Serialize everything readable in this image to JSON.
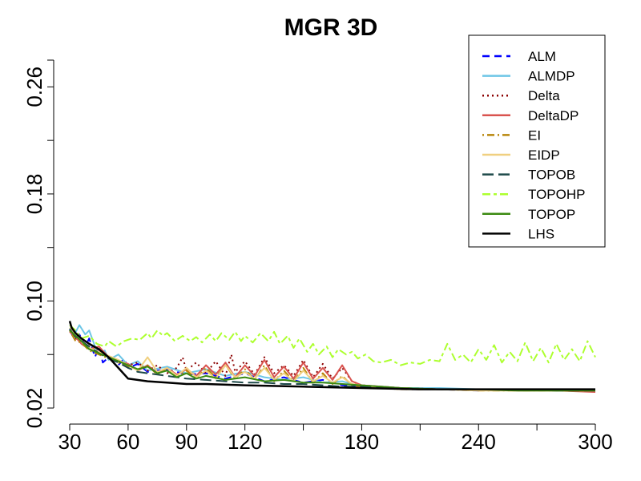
{
  "chart_data": {
    "type": "line",
    "title": "MGR 3D",
    "xlabel": "",
    "ylabel": "",
    "xlim": [
      30,
      300
    ],
    "ylim": [
      0.02,
      0.28
    ],
    "x_ticks": [
      30,
      60,
      90,
      120,
      150,
      180,
      210,
      240,
      270,
      300
    ],
    "x_tick_labels": [
      "30",
      "60",
      "90",
      "120",
      "",
      "180",
      "",
      "240",
      "",
      "300"
    ],
    "y_ticks": [
      0.02,
      0.06,
      0.1,
      0.14,
      0.18,
      0.22,
      0.26
    ],
    "y_tick_labels": [
      "0.02",
      "",
      "0.10",
      "",
      "0.18",
      "",
      "0.26"
    ],
    "grid": false,
    "legend_position": "top-right",
    "series": [
      {
        "name": "ALM",
        "color": "#0000ff",
        "dash": "dashed",
        "x": [
          30,
          32,
          35,
          38,
          40,
          43,
          45,
          47,
          50,
          53,
          55,
          58,
          60,
          65,
          70,
          80,
          90,
          100,
          110,
          120,
          130,
          140,
          150,
          160,
          170,
          180,
          190,
          200,
          220,
          240,
          260,
          280,
          300
        ],
        "y": [
          0.079,
          0.072,
          0.075,
          0.066,
          0.072,
          0.058,
          0.066,
          0.054,
          0.058,
          0.056,
          0.052,
          0.057,
          0.05,
          0.053,
          0.047,
          0.049,
          0.045,
          0.046,
          0.042,
          0.046,
          0.04,
          0.043,
          0.039,
          0.041,
          0.037,
          0.036,
          0.035,
          0.034,
          0.034,
          0.033,
          0.034,
          0.033,
          0.034
        ]
      },
      {
        "name": "ALMDP",
        "color": "#6ec6e6",
        "dash": "solid",
        "x": [
          30,
          32,
          35,
          38,
          40,
          43,
          45,
          48,
          50,
          55,
          60,
          65,
          70,
          80,
          90,
          100,
          110,
          120,
          130,
          140,
          150,
          160,
          170,
          180,
          190,
          200,
          220,
          240,
          260,
          280,
          300
        ],
        "y": [
          0.08,
          0.074,
          0.082,
          0.075,
          0.078,
          0.066,
          0.06,
          0.063,
          0.056,
          0.06,
          0.052,
          0.055,
          0.048,
          0.051,
          0.046,
          0.049,
          0.044,
          0.047,
          0.043,
          0.041,
          0.043,
          0.039,
          0.04,
          0.036,
          0.036,
          0.035,
          0.035,
          0.034,
          0.034,
          0.034,
          0.034
        ]
      },
      {
        "name": "Delta",
        "color": "#8b0000",
        "dash": "dotted",
        "x": [
          30,
          33,
          36,
          40,
          45,
          50,
          55,
          60,
          65,
          70,
          75,
          80,
          85,
          88,
          90,
          95,
          100,
          105,
          110,
          113,
          115,
          120,
          125,
          130,
          135,
          140,
          145,
          150,
          155,
          160,
          165,
          170,
          175,
          180,
          190,
          200,
          220,
          240,
          260,
          280,
          300
        ],
        "y": [
          0.078,
          0.072,
          0.07,
          0.066,
          0.062,
          0.058,
          0.055,
          0.052,
          0.054,
          0.048,
          0.052,
          0.046,
          0.05,
          0.058,
          0.048,
          0.054,
          0.046,
          0.055,
          0.044,
          0.06,
          0.047,
          0.055,
          0.045,
          0.058,
          0.046,
          0.052,
          0.044,
          0.056,
          0.043,
          0.053,
          0.042,
          0.05,
          0.04,
          0.037,
          0.036,
          0.035,
          0.034,
          0.034,
          0.034,
          0.033,
          0.033
        ]
      },
      {
        "name": "DeltaDP",
        "color": "#d9534f",
        "dash": "solid",
        "x": [
          30,
          33,
          36,
          40,
          45,
          50,
          55,
          60,
          65,
          70,
          75,
          80,
          85,
          90,
          95,
          100,
          105,
          110,
          115,
          120,
          125,
          130,
          135,
          140,
          145,
          150,
          155,
          160,
          165,
          170,
          175,
          180,
          190,
          200,
          220,
          240,
          260,
          280,
          300
        ],
        "y": [
          0.077,
          0.073,
          0.068,
          0.064,
          0.066,
          0.058,
          0.055,
          0.053,
          0.048,
          0.052,
          0.046,
          0.05,
          0.045,
          0.049,
          0.044,
          0.052,
          0.045,
          0.054,
          0.043,
          0.052,
          0.044,
          0.056,
          0.043,
          0.051,
          0.042,
          0.054,
          0.042,
          0.05,
          0.041,
          0.052,
          0.04,
          0.037,
          0.036,
          0.035,
          0.034,
          0.034,
          0.033,
          0.033,
          0.032
        ]
      },
      {
        "name": "EI",
        "color": "#b8860b",
        "dash": "dotdash",
        "x": [
          30,
          33,
          36,
          40,
          45,
          50,
          55,
          60,
          65,
          70,
          75,
          80,
          85,
          90,
          95,
          100,
          105,
          110,
          115,
          120,
          125,
          130,
          135,
          140,
          145,
          150,
          155,
          160,
          165,
          170,
          175,
          180,
          190,
          200,
          220,
          240,
          260,
          280,
          300
        ],
        "y": [
          0.078,
          0.07,
          0.069,
          0.063,
          0.06,
          0.057,
          0.054,
          0.051,
          0.049,
          0.052,
          0.045,
          0.05,
          0.043,
          0.048,
          0.042,
          0.05,
          0.043,
          0.052,
          0.042,
          0.049,
          0.041,
          0.052,
          0.04,
          0.048,
          0.04,
          0.05,
          0.039,
          0.046,
          0.038,
          0.044,
          0.037,
          0.036,
          0.035,
          0.034,
          0.034,
          0.033,
          0.033,
          0.033,
          0.033
        ]
      },
      {
        "name": "EIDP",
        "color": "#f0d080",
        "dash": "solid",
        "x": [
          30,
          33,
          36,
          40,
          45,
          50,
          55,
          60,
          65,
          70,
          75,
          80,
          85,
          90,
          95,
          100,
          105,
          110,
          115,
          120,
          125,
          130,
          135,
          140,
          145,
          150,
          155,
          160,
          165,
          170,
          175,
          180,
          190,
          200,
          220,
          240,
          260,
          280,
          300
        ],
        "y": [
          0.08,
          0.074,
          0.07,
          0.065,
          0.062,
          0.059,
          0.056,
          0.052,
          0.048,
          0.058,
          0.047,
          0.05,
          0.044,
          0.05,
          0.043,
          0.048,
          0.042,
          0.052,
          0.043,
          0.047,
          0.042,
          0.05,
          0.041,
          0.046,
          0.04,
          0.048,
          0.04,
          0.044,
          0.039,
          0.043,
          0.038,
          0.037,
          0.035,
          0.034,
          0.034,
          0.033,
          0.033,
          0.033,
          0.033
        ]
      },
      {
        "name": "TOPOB",
        "color": "#1e4a4a",
        "dash": "longdash",
        "x": [
          30,
          33,
          36,
          40,
          45,
          50,
          55,
          60,
          65,
          70,
          80,
          90,
          100,
          110,
          120,
          130,
          140,
          150,
          160,
          170,
          180,
          190,
          200,
          220,
          240,
          260,
          280,
          300
        ],
        "y": [
          0.079,
          0.073,
          0.07,
          0.066,
          0.061,
          0.057,
          0.054,
          0.05,
          0.047,
          0.046,
          0.044,
          0.042,
          0.041,
          0.04,
          0.039,
          0.039,
          0.038,
          0.038,
          0.037,
          0.036,
          0.036,
          0.035,
          0.035,
          0.034,
          0.034,
          0.034,
          0.033,
          0.033
        ]
      },
      {
        "name": "TOPOHP",
        "color": "#adff2f",
        "dash": "twodash",
        "x": [
          30,
          33,
          36,
          40,
          44,
          48,
          50,
          54,
          58,
          62,
          66,
          70,
          72,
          75,
          78,
          80,
          84,
          88,
          92,
          95,
          98,
          102,
          105,
          108,
          112,
          115,
          118,
          120,
          124,
          128,
          132,
          135,
          138,
          142,
          145,
          148,
          152,
          155,
          158,
          162,
          165,
          168,
          172,
          175,
          178,
          182,
          186,
          190,
          195,
          200,
          205,
          210,
          215,
          220,
          224,
          228,
          232,
          236,
          240,
          244,
          248,
          252,
          256,
          260,
          264,
          268,
          272,
          276,
          280,
          284,
          288,
          292,
          296,
          300
        ],
        "y": [
          0.082,
          0.078,
          0.072,
          0.074,
          0.068,
          0.066,
          0.07,
          0.066,
          0.07,
          0.072,
          0.071,
          0.076,
          0.072,
          0.078,
          0.074,
          0.076,
          0.07,
          0.074,
          0.07,
          0.073,
          0.069,
          0.075,
          0.07,
          0.076,
          0.071,
          0.077,
          0.07,
          0.074,
          0.069,
          0.076,
          0.07,
          0.077,
          0.068,
          0.074,
          0.065,
          0.072,
          0.062,
          0.068,
          0.06,
          0.066,
          0.058,
          0.064,
          0.06,
          0.062,
          0.057,
          0.06,
          0.055,
          0.054,
          0.056,
          0.052,
          0.054,
          0.053,
          0.056,
          0.055,
          0.068,
          0.056,
          0.06,
          0.054,
          0.064,
          0.056,
          0.067,
          0.054,
          0.062,
          0.055,
          0.069,
          0.055,
          0.065,
          0.054,
          0.068,
          0.056,
          0.064,
          0.055,
          0.07,
          0.058
        ]
      },
      {
        "name": "TOPOP",
        "color": "#3a8a10",
        "dash": "solid",
        "x": [
          30,
          33,
          36,
          40,
          45,
          50,
          55,
          60,
          65,
          70,
          75,
          80,
          85,
          90,
          95,
          100,
          110,
          120,
          130,
          140,
          150,
          160,
          170,
          180,
          190,
          200,
          220,
          240,
          260,
          280,
          300
        ],
        "y": [
          0.078,
          0.074,
          0.07,
          0.064,
          0.061,
          0.058,
          0.055,
          0.052,
          0.049,
          0.051,
          0.046,
          0.048,
          0.043,
          0.046,
          0.042,
          0.044,
          0.041,
          0.043,
          0.04,
          0.041,
          0.039,
          0.039,
          0.038,
          0.037,
          0.036,
          0.035,
          0.034,
          0.034,
          0.033,
          0.033,
          0.033
        ]
      },
      {
        "name": "LHS",
        "color": "#000000",
        "dash": "solid",
        "x": [
          30,
          31,
          33,
          36,
          40,
          45,
          50,
          55,
          60,
          70,
          80,
          90,
          100,
          120,
          150,
          180,
          210,
          240,
          270,
          300
        ],
        "y": [
          0.085,
          0.08,
          0.076,
          0.072,
          0.068,
          0.064,
          0.058,
          0.05,
          0.042,
          0.04,
          0.039,
          0.038,
          0.038,
          0.037,
          0.036,
          0.035,
          0.034,
          0.034,
          0.034,
          0.034
        ]
      }
    ]
  }
}
